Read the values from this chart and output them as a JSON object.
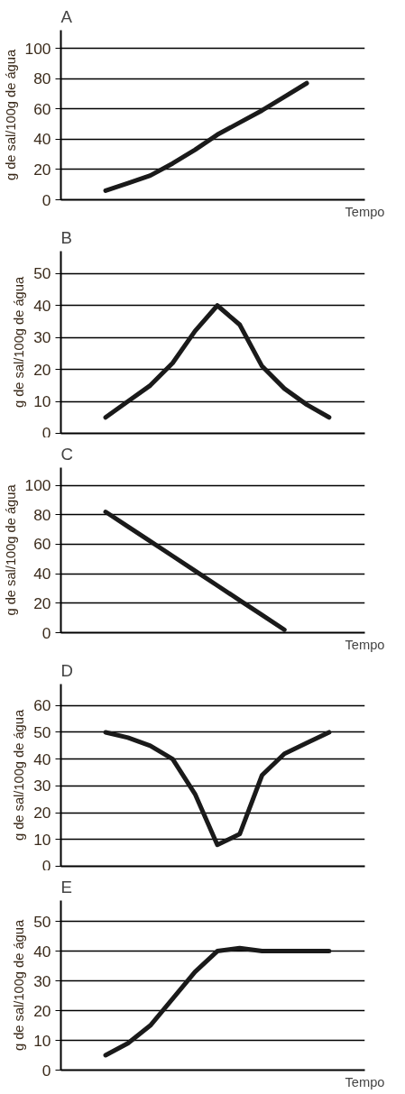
{
  "chart_data": [
    {
      "type": "line",
      "title": "A",
      "xlabel": "Tempo",
      "ylabel": "g de sal/100g de água",
      "categories": [
        null,
        null,
        null,
        null,
        null,
        null,
        null,
        null,
        null,
        null,
        null,
        null
      ],
      "ylim": [
        0,
        112
      ],
      "yticks": [
        0,
        20,
        40,
        60,
        80,
        100
      ],
      "grid": "y",
      "tick_labels": "y",
      "series": [
        {
          "color": "#1a1a1a",
          "values": [
            null,
            6,
            11,
            16,
            24,
            33,
            43,
            51,
            59,
            68,
            77,
            null
          ]
        }
      ]
    },
    {
      "type": "line",
      "title": "B",
      "ylabel": "g de sal/100g de água",
      "categories": [
        null,
        null,
        null,
        null,
        null,
        null,
        null,
        null,
        null,
        null,
        null,
        null
      ],
      "ylim": [
        0,
        57
      ],
      "yticks": [
        0,
        10,
        20,
        30,
        40,
        50
      ],
      "grid": "y",
      "tick_labels": "y",
      "series": [
        {
          "color": "#1a1a1a",
          "values": [
            null,
            5,
            10,
            15,
            22,
            32,
            40,
            34,
            21,
            14,
            9,
            5
          ]
        }
      ]
    },
    {
      "type": "line",
      "title": "C",
      "xlabel": "Tempo",
      "ylabel": "g de sal/100g de água",
      "categories": [
        null,
        null,
        null,
        null,
        null,
        null,
        null,
        null,
        null,
        null,
        null,
        null
      ],
      "ylim": [
        0,
        112
      ],
      "yticks": [
        0,
        20,
        40,
        60,
        80,
        100
      ],
      "grid": "y",
      "tick_labels": "y",
      "series": [
        {
          "color": "#1a1a1a",
          "values": [
            null,
            82,
            72,
            62,
            52,
            42,
            32,
            22,
            12,
            2,
            null,
            null
          ]
        }
      ]
    },
    {
      "type": "line",
      "title": "D",
      "ylabel": "g de sal/100g de água",
      "categories": [
        null,
        null,
        null,
        null,
        null,
        null,
        null,
        null,
        null,
        null,
        null,
        null
      ],
      "ylim": [
        0,
        68
      ],
      "yticks": [
        0,
        10,
        20,
        30,
        40,
        50,
        60
      ],
      "grid": "y",
      "tick_labels": "y",
      "series": [
        {
          "color": "#1a1a1a",
          "values": [
            null,
            50,
            48,
            45,
            40,
            27,
            8,
            12,
            34,
            42,
            46,
            50
          ]
        }
      ]
    },
    {
      "type": "line",
      "title": "E",
      "xlabel": "Tempo",
      "ylabel": "g de sal/100g de água",
      "categories": [
        null,
        null,
        null,
        null,
        null,
        null,
        null,
        null,
        null,
        null,
        null,
        null
      ],
      "ylim": [
        0,
        57
      ],
      "yticks": [
        0,
        10,
        20,
        30,
        40,
        50
      ],
      "grid": "y",
      "tick_labels": "y",
      "series": [
        {
          "color": "#1a1a1a",
          "values": [
            null,
            5,
            9,
            15,
            24,
            33,
            40,
            41,
            40,
            40,
            40,
            40
          ]
        }
      ]
    }
  ]
}
